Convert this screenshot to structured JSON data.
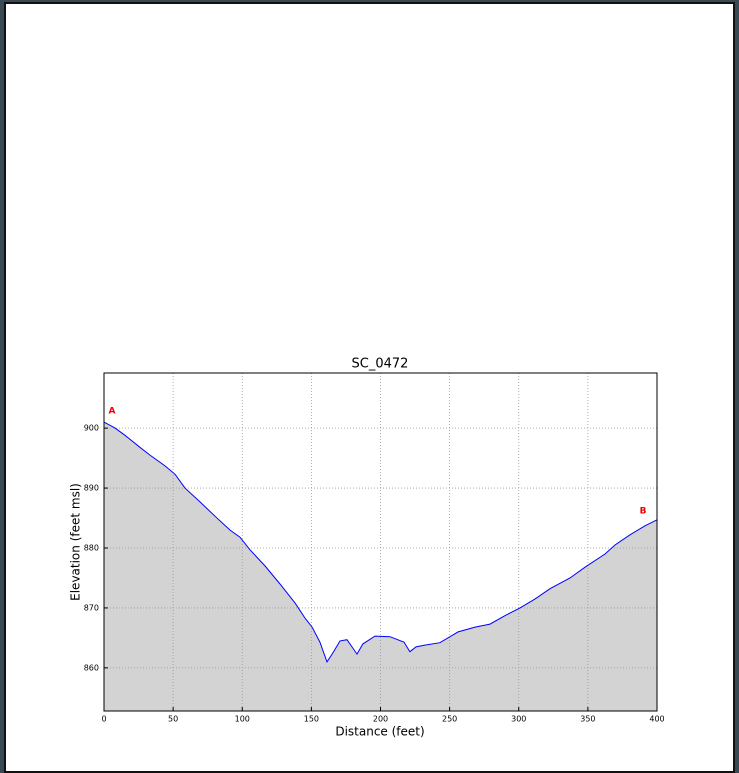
{
  "chart_data": {
    "type": "area",
    "title": "SC_0472",
    "xlabel": "Distance (feet)",
    "ylabel": "Elevation (feet msl)",
    "annotations": [
      "A",
      "B"
    ],
    "x": [
      0,
      8,
      15.2,
      26,
      33.3,
      44.1,
      51.4,
      58.6,
      69.4,
      80.3,
      91.1,
      98.4,
      105.6,
      116.5,
      127.3,
      138.2,
      145.4,
      150.5,
      156.2,
      161.3,
      165.6,
      170.7,
      175.8,
      179.4,
      183,
      187.3,
      196,
      206.9,
      217,
      221.3,
      225.7,
      232.2,
      243,
      256.1,
      268.4,
      279.2,
      290,
      300.9,
      311.8,
      322.6,
      337.1,
      347.9,
      362.4,
      369.6,
      380.5,
      391.3,
      400
    ],
    "values": [
      901,
      900,
      898.8,
      896.8,
      895.5,
      893.7,
      892.3,
      890,
      887.7,
      885.3,
      883,
      881.8,
      879.7,
      877,
      874,
      870.8,
      868.3,
      866.8,
      864.3,
      861,
      862.5,
      864.5,
      864.7,
      863.5,
      862.3,
      864,
      865.3,
      865.2,
      864.3,
      862.7,
      863.5,
      863.8,
      864.2,
      866,
      866.8,
      867.3,
      868.7,
      870,
      871.5,
      873.2,
      875,
      876.8,
      879,
      880.5,
      882.2,
      883.7,
      884.7
    ],
    "color": "#0000ff",
    "fill": "#d3d3d3",
    "xlim": [
      0,
      400
    ],
    "xticks": [
      0,
      50,
      100,
      150,
      200,
      250,
      300,
      350,
      400
    ],
    "ylim": [
      852.8,
      909.2
    ],
    "yticks": [
      860,
      870,
      880,
      890,
      900
    ],
    "grid": true
  }
}
